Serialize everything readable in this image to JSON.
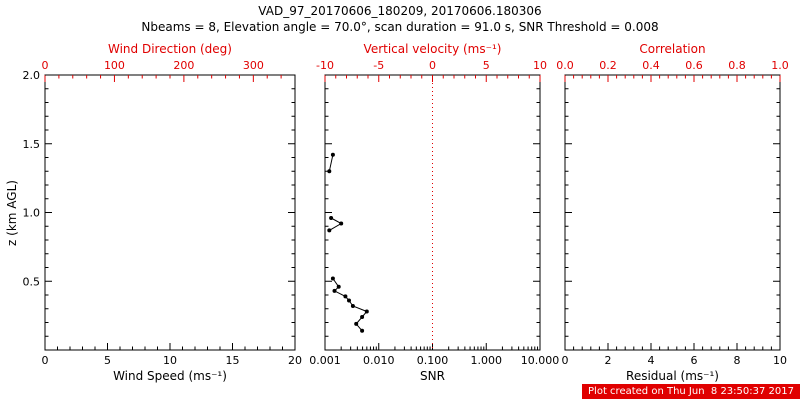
{
  "header": {
    "title": "VAD_97_20170606_180209, 20170606.180306",
    "subtitle": "Nbeams = 8, Elevation angle = 70.0°, scan duration = 91.0 s, SNR Threshold = 0.008"
  },
  "footer": {
    "created_label": "Plot created on Thu Jun  8 23:50:37 2017"
  },
  "colors": {
    "axis_black": "#000000",
    "accent_red": "#e00000",
    "background": "#ffffff"
  },
  "chart_data": {
    "title": "VAD_97_20170606_180209, 20170606.180306",
    "subtitle": "Nbeams = 8, Elevation angle = 70.0°, scan duration = 91.0 s, SNR Threshold = 0.008",
    "shared_y": {
      "label": "z (km AGL)",
      "range": [
        0.0,
        2.0
      ],
      "ticks": [
        "0.5",
        "1.0",
        "1.5",
        "2.0"
      ]
    },
    "panels": [
      {
        "type": "line",
        "name": "wind-speed-panel",
        "ylabel": "z (km AGL)",
        "y_range": [
          0.0,
          2.0
        ],
        "y_ticks": [
          "0.5",
          "1.0",
          "1.5",
          "2.0"
        ],
        "bottom_axis": {
          "label": "Wind Speed (ms⁻¹)",
          "range": [
            0,
            20
          ],
          "ticks": [
            "0",
            "5",
            "10",
            "15",
            "20"
          ],
          "scale": "linear",
          "color": "#000000"
        },
        "top_axis": {
          "label": "Wind Direction (deg)",
          "range": [
            0,
            360
          ],
          "ticks": [
            "0",
            "100",
            "200",
            "300"
          ],
          "scale": "linear",
          "color": "#e00000"
        },
        "series": []
      },
      {
        "type": "line",
        "name": "snr-panel",
        "y_range": [
          0.0,
          2.0
        ],
        "y_ticks": [
          "0.5",
          "1.0",
          "1.5",
          "2.0"
        ],
        "bottom_axis": {
          "label": "SNR",
          "range": [
            0.001,
            10.0
          ],
          "ticks": [
            "0.001",
            "0.010",
            "0.100",
            "1.000",
            "10.000"
          ],
          "scale": "log",
          "color": "#000000"
        },
        "top_axis": {
          "label": "Vertical velocity (ms⁻¹)",
          "range": [
            -10,
            10
          ],
          "ticks": [
            "-10",
            "-5",
            "0",
            "5",
            "10"
          ],
          "scale": "linear",
          "color": "#e00000"
        },
        "reference_line": {
          "axis": "top",
          "value": 0,
          "style": "dotted",
          "color": "#e00000"
        },
        "series": [
          {
            "name": "snr-profile-segment-1",
            "x_is": "SNR",
            "y_is": "z (km AGL)",
            "points": [
              [
                0.0014,
                1.42
              ],
              [
                0.0012,
                1.3
              ]
            ]
          },
          {
            "name": "snr-profile-segment-2",
            "x_is": "SNR",
            "y_is": "z (km AGL)",
            "points": [
              [
                0.0013,
                0.96
              ],
              [
                0.002,
                0.92
              ],
              [
                0.0012,
                0.87
              ]
            ]
          },
          {
            "name": "snr-profile-segment-3",
            "x_is": "SNR",
            "y_is": "z (km AGL)",
            "points": [
              [
                0.0014,
                0.52
              ],
              [
                0.0018,
                0.46
              ],
              [
                0.0015,
                0.43
              ],
              [
                0.0024,
                0.39
              ],
              [
                0.0028,
                0.36
              ],
              [
                0.0033,
                0.32
              ],
              [
                0.006,
                0.28
              ],
              [
                0.0049,
                0.24
              ],
              [
                0.0038,
                0.19
              ],
              [
                0.0049,
                0.14
              ]
            ]
          }
        ]
      },
      {
        "type": "line",
        "name": "residual-panel",
        "y_range": [
          0.0,
          2.0
        ],
        "y_ticks": [
          "0.5",
          "1.0",
          "1.5",
          "2.0"
        ],
        "bottom_axis": {
          "label": "Residual (ms⁻¹)",
          "range": [
            0,
            10
          ],
          "ticks": [
            "0",
            "2",
            "4",
            "6",
            "8",
            "10"
          ],
          "scale": "linear",
          "color": "#000000"
        },
        "top_axis": {
          "label": "Correlation",
          "range": [
            0.0,
            1.0
          ],
          "ticks": [
            "0.0",
            "0.2",
            "0.4",
            "0.6",
            "0.8",
            "1.0"
          ],
          "scale": "linear",
          "color": "#e00000"
        },
        "series": []
      }
    ]
  }
}
